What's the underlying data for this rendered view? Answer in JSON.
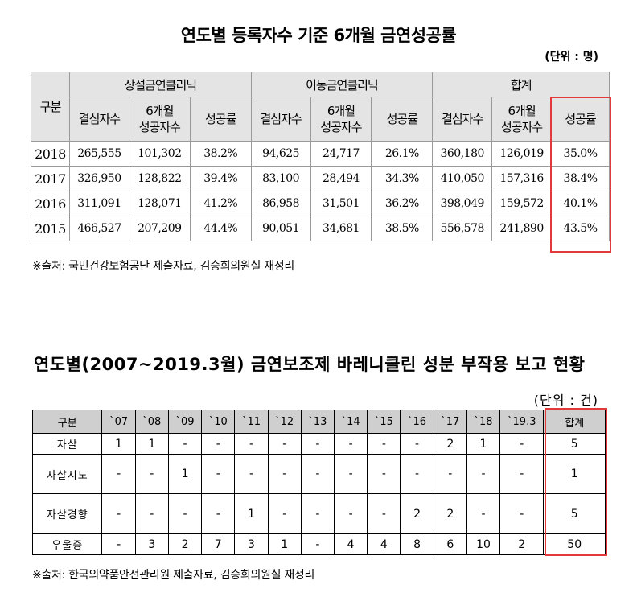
{
  "table1": {
    "title": "연도별 등록자수 기준 6개월 금연성공률",
    "unit": "(단위 : 명)",
    "row_header": "구분",
    "groups": [
      "상설금연클리닉",
      "이동금연클리닉",
      "합계"
    ],
    "subheaders": [
      "결심자수",
      "6개월\n성공자수",
      "성공률"
    ],
    "rows": [
      {
        "year": "2018",
        "cells": [
          "265,555",
          "101,302",
          "38.2%",
          "94,625",
          "24,717",
          "26.1%",
          "360,180",
          "126,019",
          "35.0%"
        ]
      },
      {
        "year": "2017",
        "cells": [
          "326,950",
          "128,822",
          "39.4%",
          "83,100",
          "28,494",
          "34.3%",
          "410,050",
          "157,316",
          "38.4%"
        ]
      },
      {
        "year": "2016",
        "cells": [
          "311,091",
          "128,071",
          "41.2%",
          "86,958",
          "31,501",
          "36.2%",
          "398,049",
          "159,572",
          "40.1%"
        ]
      },
      {
        "year": "2015",
        "cells": [
          "466,527",
          "207,209",
          "44.4%",
          "90,051",
          "34,681",
          "38.5%",
          "556,578",
          "241,890",
          "43.5%"
        ]
      }
    ],
    "source": "※출처: 국민건강보험공단 제출자료, 김승희의원실 재정리"
  },
  "table2": {
    "title": "연도별(2007~2019.3월) 금연보조제 바레니클린 성분 부작용 보고 현황",
    "unit": "(단위 : 건)",
    "headers": [
      "구분",
      "`07",
      "`08",
      "`09",
      "`10",
      "`11",
      "`12",
      "`13",
      "`14",
      "`15",
      "`16",
      "`17",
      "`18",
      "`19.3",
      "합계"
    ],
    "rows": [
      {
        "label": "자살",
        "cells": [
          "1",
          "1",
          "-",
          "-",
          "-",
          "-",
          "-",
          "-",
          "-",
          "-",
          "2",
          "1",
          "-",
          "5"
        ]
      },
      {
        "label": "자살시도",
        "cells": [
          "-",
          "-",
          "1",
          "-",
          "-",
          "-",
          "-",
          "-",
          "-",
          "-",
          "-",
          "-",
          "-",
          "1"
        ]
      },
      {
        "label": "자살경향",
        "cells": [
          "-",
          "-",
          "-",
          "-",
          "1",
          "-",
          "-",
          "-",
          "-",
          "2",
          "2",
          "-",
          "-",
          "5"
        ]
      },
      {
        "label": "우울증",
        "cells": [
          "-",
          "3",
          "2",
          "7",
          "3",
          "1",
          "-",
          "4",
          "4",
          "8",
          "6",
          "10",
          "2",
          "50"
        ]
      }
    ],
    "source": "※출처: 한국의약품안전관리원 제출자료, 김승희의원실 재정리"
  },
  "colors": {
    "highlight": "#e23a3a",
    "header_bg": "#e4e4e4",
    "header_bg2": "#cfcfcf"
  }
}
